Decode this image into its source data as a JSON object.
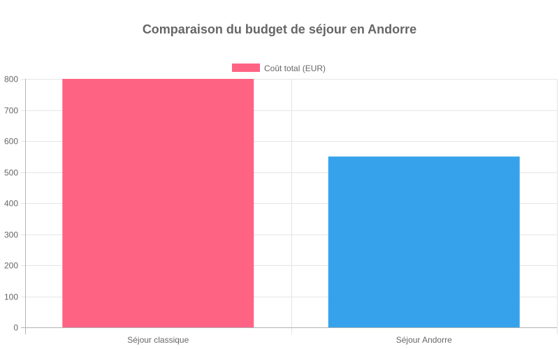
{
  "chart_data": {
    "type": "bar",
    "title": "Comparaison du budget de séjour en Andorre",
    "categories": [
      "Séjour classique",
      "Séjour Andorre"
    ],
    "series": [
      {
        "name": "Coût total (EUR)",
        "values": [
          800,
          550
        ],
        "colors": [
          "#ff6384",
          "#36a2eb"
        ]
      }
    ],
    "ylim": [
      0,
      800
    ],
    "yticks": [
      0,
      100,
      200,
      300,
      400,
      500,
      600,
      700,
      800
    ],
    "xlabel": "",
    "ylabel": "",
    "grid": true,
    "legend_position": "top"
  }
}
